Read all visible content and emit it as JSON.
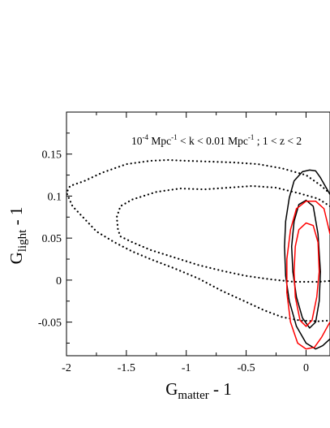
{
  "chart_data": {
    "type": "contour",
    "xlabel": {
      "main": "G",
      "sub": "matter",
      "rest": " - 1"
    },
    "ylabel": {
      "main": "G",
      "sub": "light",
      "rest": " - 1"
    },
    "xlim": [
      -2,
      0.2
    ],
    "ylim": [
      -0.09,
      0.2
    ],
    "xticks": [
      -2,
      -1.5,
      -1,
      -0.5,
      0
    ],
    "xtick_labels": [
      "-2",
      "-1.5",
      "-1",
      "-0.5",
      "0"
    ],
    "yticks": [
      -0.05,
      0,
      0.05,
      0.1,
      0.15
    ],
    "ytick_labels": [
      "-0.05",
      "0",
      "0.05",
      "0.1",
      "0.15"
    ],
    "annotation": {
      "p1": "10",
      "sup1": "-4",
      "p2": " Mpc",
      "sup2": "-1",
      "p3": " < k < 0.01 Mpc",
      "sup3": "-1",
      "p4": " ; 1 < z < 2"
    },
    "grid": false,
    "series": [
      {
        "style": "dotted",
        "color": "#000000",
        "x": [
          0.2,
          0.12,
          0.0,
          -0.2,
          -0.4,
          -0.6,
          -0.8,
          -1.0,
          -1.15,
          -1.3,
          -1.5,
          -1.7,
          -1.85,
          -1.97,
          -2.0,
          -1.95,
          -1.85,
          -1.75,
          -1.6,
          -1.45,
          -1.3,
          -1.1,
          -0.9,
          -0.7,
          -0.5,
          -0.35,
          -0.2,
          -0.05,
          0.1,
          0.2
        ],
        "y": [
          0.103,
          0.113,
          0.125,
          0.133,
          0.138,
          0.14,
          0.141,
          0.142,
          0.143,
          0.142,
          0.138,
          0.128,
          0.118,
          0.112,
          0.104,
          0.088,
          0.073,
          0.058,
          0.045,
          0.034,
          0.025,
          0.014,
          0.002,
          -0.013,
          -0.026,
          -0.036,
          -0.044,
          -0.048,
          -0.049,
          -0.048
        ]
      },
      {
        "style": "dotted",
        "color": "#000000",
        "x": [
          0.2,
          0.1,
          -0.05,
          -0.25,
          -0.45,
          -0.65,
          -0.85,
          -1.05,
          -1.25,
          -1.45,
          -1.55,
          -1.58,
          -1.57,
          -1.55,
          -1.45,
          -1.3,
          -1.1,
          -0.9,
          -0.7,
          -0.5,
          -0.3,
          -0.1,
          0.1,
          0.2
        ],
        "y": [
          0.088,
          0.097,
          0.103,
          0.11,
          0.112,
          0.11,
          0.108,
          0.109,
          0.105,
          0.096,
          0.088,
          0.075,
          0.06,
          0.052,
          0.045,
          0.036,
          0.027,
          0.018,
          0.011,
          0.005,
          0.001,
          -0.002,
          -0.002,
          -0.001
        ]
      },
      {
        "style": "solid",
        "color": "#000000",
        "x": [
          0.2,
          0.12,
          0.08,
          0.03,
          -0.03,
          -0.1,
          -0.14,
          -0.17,
          -0.18,
          -0.17,
          -0.14,
          -0.08,
          0.0,
          0.08,
          0.14,
          0.2
        ],
        "y": [
          0.102,
          0.122,
          0.13,
          0.131,
          0.129,
          0.118,
          0.098,
          0.07,
          0.04,
          0.005,
          -0.025,
          -0.055,
          -0.075,
          -0.082,
          -0.078,
          -0.07
        ]
      },
      {
        "style": "solid",
        "color": "#000000",
        "x": [
          0.0,
          -0.06,
          -0.1,
          -0.12,
          -0.11,
          -0.08,
          -0.03,
          0.03,
          0.08,
          0.11,
          0.12,
          0.1,
          0.06,
          0.0
        ],
        "y": [
          0.095,
          0.09,
          0.07,
          0.04,
          0.01,
          -0.02,
          -0.045,
          -0.057,
          -0.05,
          -0.025,
          0.01,
          0.055,
          0.088,
          0.095
        ]
      },
      {
        "style": "solid",
        "color": "#ff0000",
        "x": [
          0.2,
          0.15,
          0.08,
          0.0,
          -0.08,
          -0.13,
          -0.16,
          -0.16,
          -0.13,
          -0.07,
          0.0,
          0.07,
          0.13,
          0.18,
          0.2
        ],
        "y": [
          0.055,
          0.085,
          0.094,
          0.094,
          0.085,
          0.06,
          0.025,
          -0.015,
          -0.05,
          -0.075,
          -0.082,
          -0.08,
          -0.068,
          -0.055,
          -0.05
        ]
      },
      {
        "style": "solid",
        "color": "#ff0000",
        "x": [
          0.0,
          -0.06,
          -0.09,
          -0.1,
          -0.09,
          -0.05,
          0.0,
          0.05,
          0.09,
          0.11,
          0.1,
          0.06,
          0.0
        ],
        "y": [
          0.068,
          0.06,
          0.04,
          0.01,
          -0.02,
          -0.048,
          -0.055,
          -0.048,
          -0.02,
          0.01,
          0.045,
          0.065,
          0.068
        ]
      }
    ]
  }
}
